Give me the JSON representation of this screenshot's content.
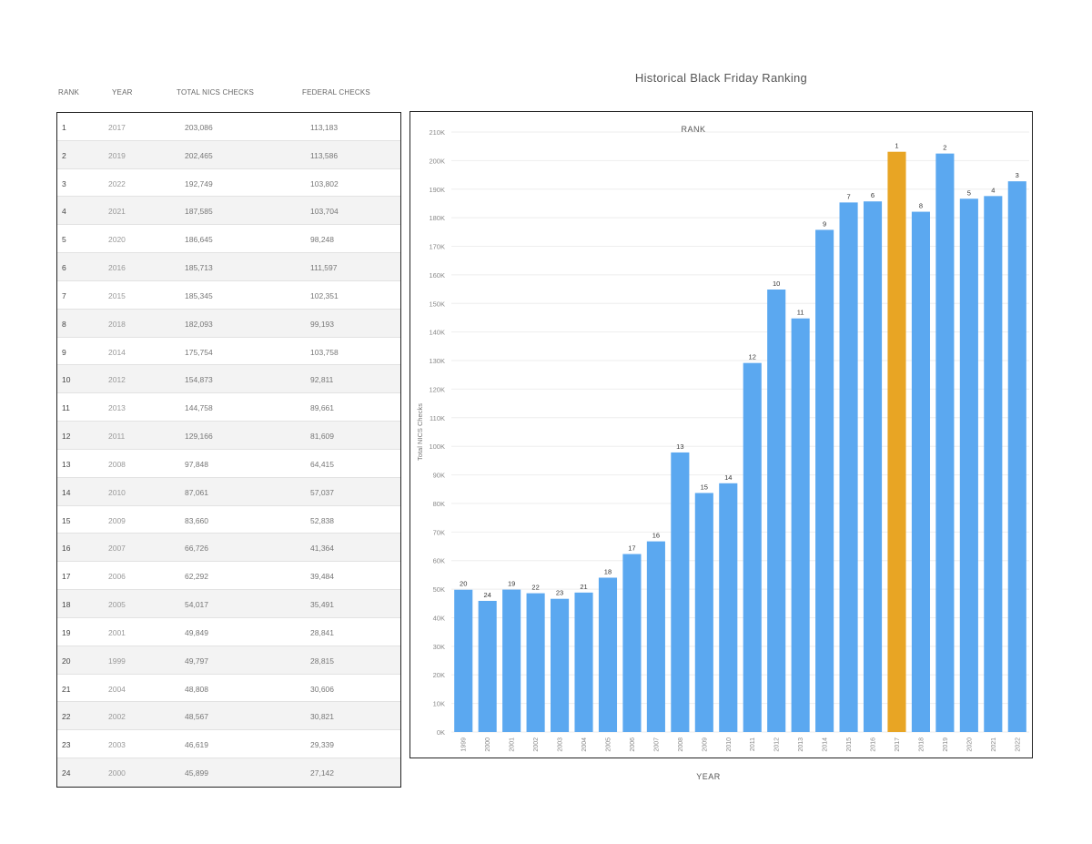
{
  "table": {
    "headers": {
      "rank": "RANK",
      "year": "YEAR",
      "total": "TOTAL NICS CHECKS",
      "federal": "FEDERAL CHECKS"
    },
    "rows": [
      {
        "rank": "1",
        "year": "2017",
        "total": "203,086",
        "federal": "113,183"
      },
      {
        "rank": "2",
        "year": "2019",
        "total": "202,465",
        "federal": "113,586"
      },
      {
        "rank": "3",
        "year": "2022",
        "total": "192,749",
        "federal": "103,802"
      },
      {
        "rank": "4",
        "year": "2021",
        "total": "187,585",
        "federal": "103,704"
      },
      {
        "rank": "5",
        "year": "2020",
        "total": "186,645",
        "federal": "98,248"
      },
      {
        "rank": "6",
        "year": "2016",
        "total": "185,713",
        "federal": "111,597"
      },
      {
        "rank": "7",
        "year": "2015",
        "total": "185,345",
        "federal": "102,351"
      },
      {
        "rank": "8",
        "year": "2018",
        "total": "182,093",
        "federal": "99,193"
      },
      {
        "rank": "9",
        "year": "2014",
        "total": "175,754",
        "federal": "103,758"
      },
      {
        "rank": "10",
        "year": "2012",
        "total": "154,873",
        "federal": "92,811"
      },
      {
        "rank": "11",
        "year": "2013",
        "total": "144,758",
        "federal": "89,661"
      },
      {
        "rank": "12",
        "year": "2011",
        "total": "129,166",
        "federal": "81,609"
      },
      {
        "rank": "13",
        "year": "2008",
        "total": "97,848",
        "federal": "64,415"
      },
      {
        "rank": "14",
        "year": "2010",
        "total": "87,061",
        "federal": "57,037"
      },
      {
        "rank": "15",
        "year": "2009",
        "total": "83,660",
        "federal": "52,838"
      },
      {
        "rank": "16",
        "year": "2007",
        "total": "66,726",
        "federal": "41,364"
      },
      {
        "rank": "17",
        "year": "2006",
        "total": "62,292",
        "federal": "39,484"
      },
      {
        "rank": "18",
        "year": "2005",
        "total": "54,017",
        "federal": "35,491"
      },
      {
        "rank": "19",
        "year": "2001",
        "total": "49,849",
        "federal": "28,841"
      },
      {
        "rank": "20",
        "year": "1999",
        "total": "49,797",
        "federal": "28,815"
      },
      {
        "rank": "21",
        "year": "2004",
        "total": "48,808",
        "federal": "30,606"
      },
      {
        "rank": "22",
        "year": "2002",
        "total": "48,567",
        "federal": "30,821"
      },
      {
        "rank": "23",
        "year": "2003",
        "total": "46,619",
        "federal": "29,339"
      },
      {
        "rank": "24",
        "year": "2000",
        "total": "45,899",
        "federal": "27,142"
      }
    ]
  },
  "chart_data": {
    "type": "bar",
    "title": "Historical Black Friday Ranking",
    "subtitle": "RANK",
    "xlabel": "YEAR",
    "ylabel": "Total NICS Checks",
    "ylim": [
      0,
      210000
    ],
    "yticks": [
      "0K",
      "10K",
      "20K",
      "30K",
      "40K",
      "50K",
      "60K",
      "70K",
      "80K",
      "90K",
      "100K",
      "110K",
      "120K",
      "130K",
      "140K",
      "150K",
      "160K",
      "170K",
      "180K",
      "190K",
      "200K",
      "210K"
    ],
    "grid": true,
    "categories": [
      "1999",
      "2000",
      "2001",
      "2002",
      "2003",
      "2004",
      "2005",
      "2006",
      "2007",
      "2008",
      "2009",
      "2010",
      "2011",
      "2012",
      "2013",
      "2014",
      "2015",
      "2016",
      "2017",
      "2018",
      "2019",
      "2020",
      "2021",
      "2022"
    ],
    "values": [
      49797,
      45899,
      49849,
      48567,
      46619,
      48808,
      54017,
      62292,
      66726,
      97848,
      83660,
      87061,
      129166,
      154873,
      144758,
      175754,
      185345,
      185713,
      203086,
      182093,
      202465,
      186645,
      187585,
      192749
    ],
    "data_labels": [
      "20",
      "24",
      "19",
      "22",
      "23",
      "21",
      "18",
      "17",
      "16",
      "13",
      "15",
      "14",
      "12",
      "10",
      "11",
      "9",
      "7",
      "6",
      "1",
      "8",
      "2",
      "5",
      "4",
      "3"
    ],
    "bar_color": "#5ba8f0",
    "highlight_color": "#e8a524",
    "highlight_category": "2017"
  }
}
